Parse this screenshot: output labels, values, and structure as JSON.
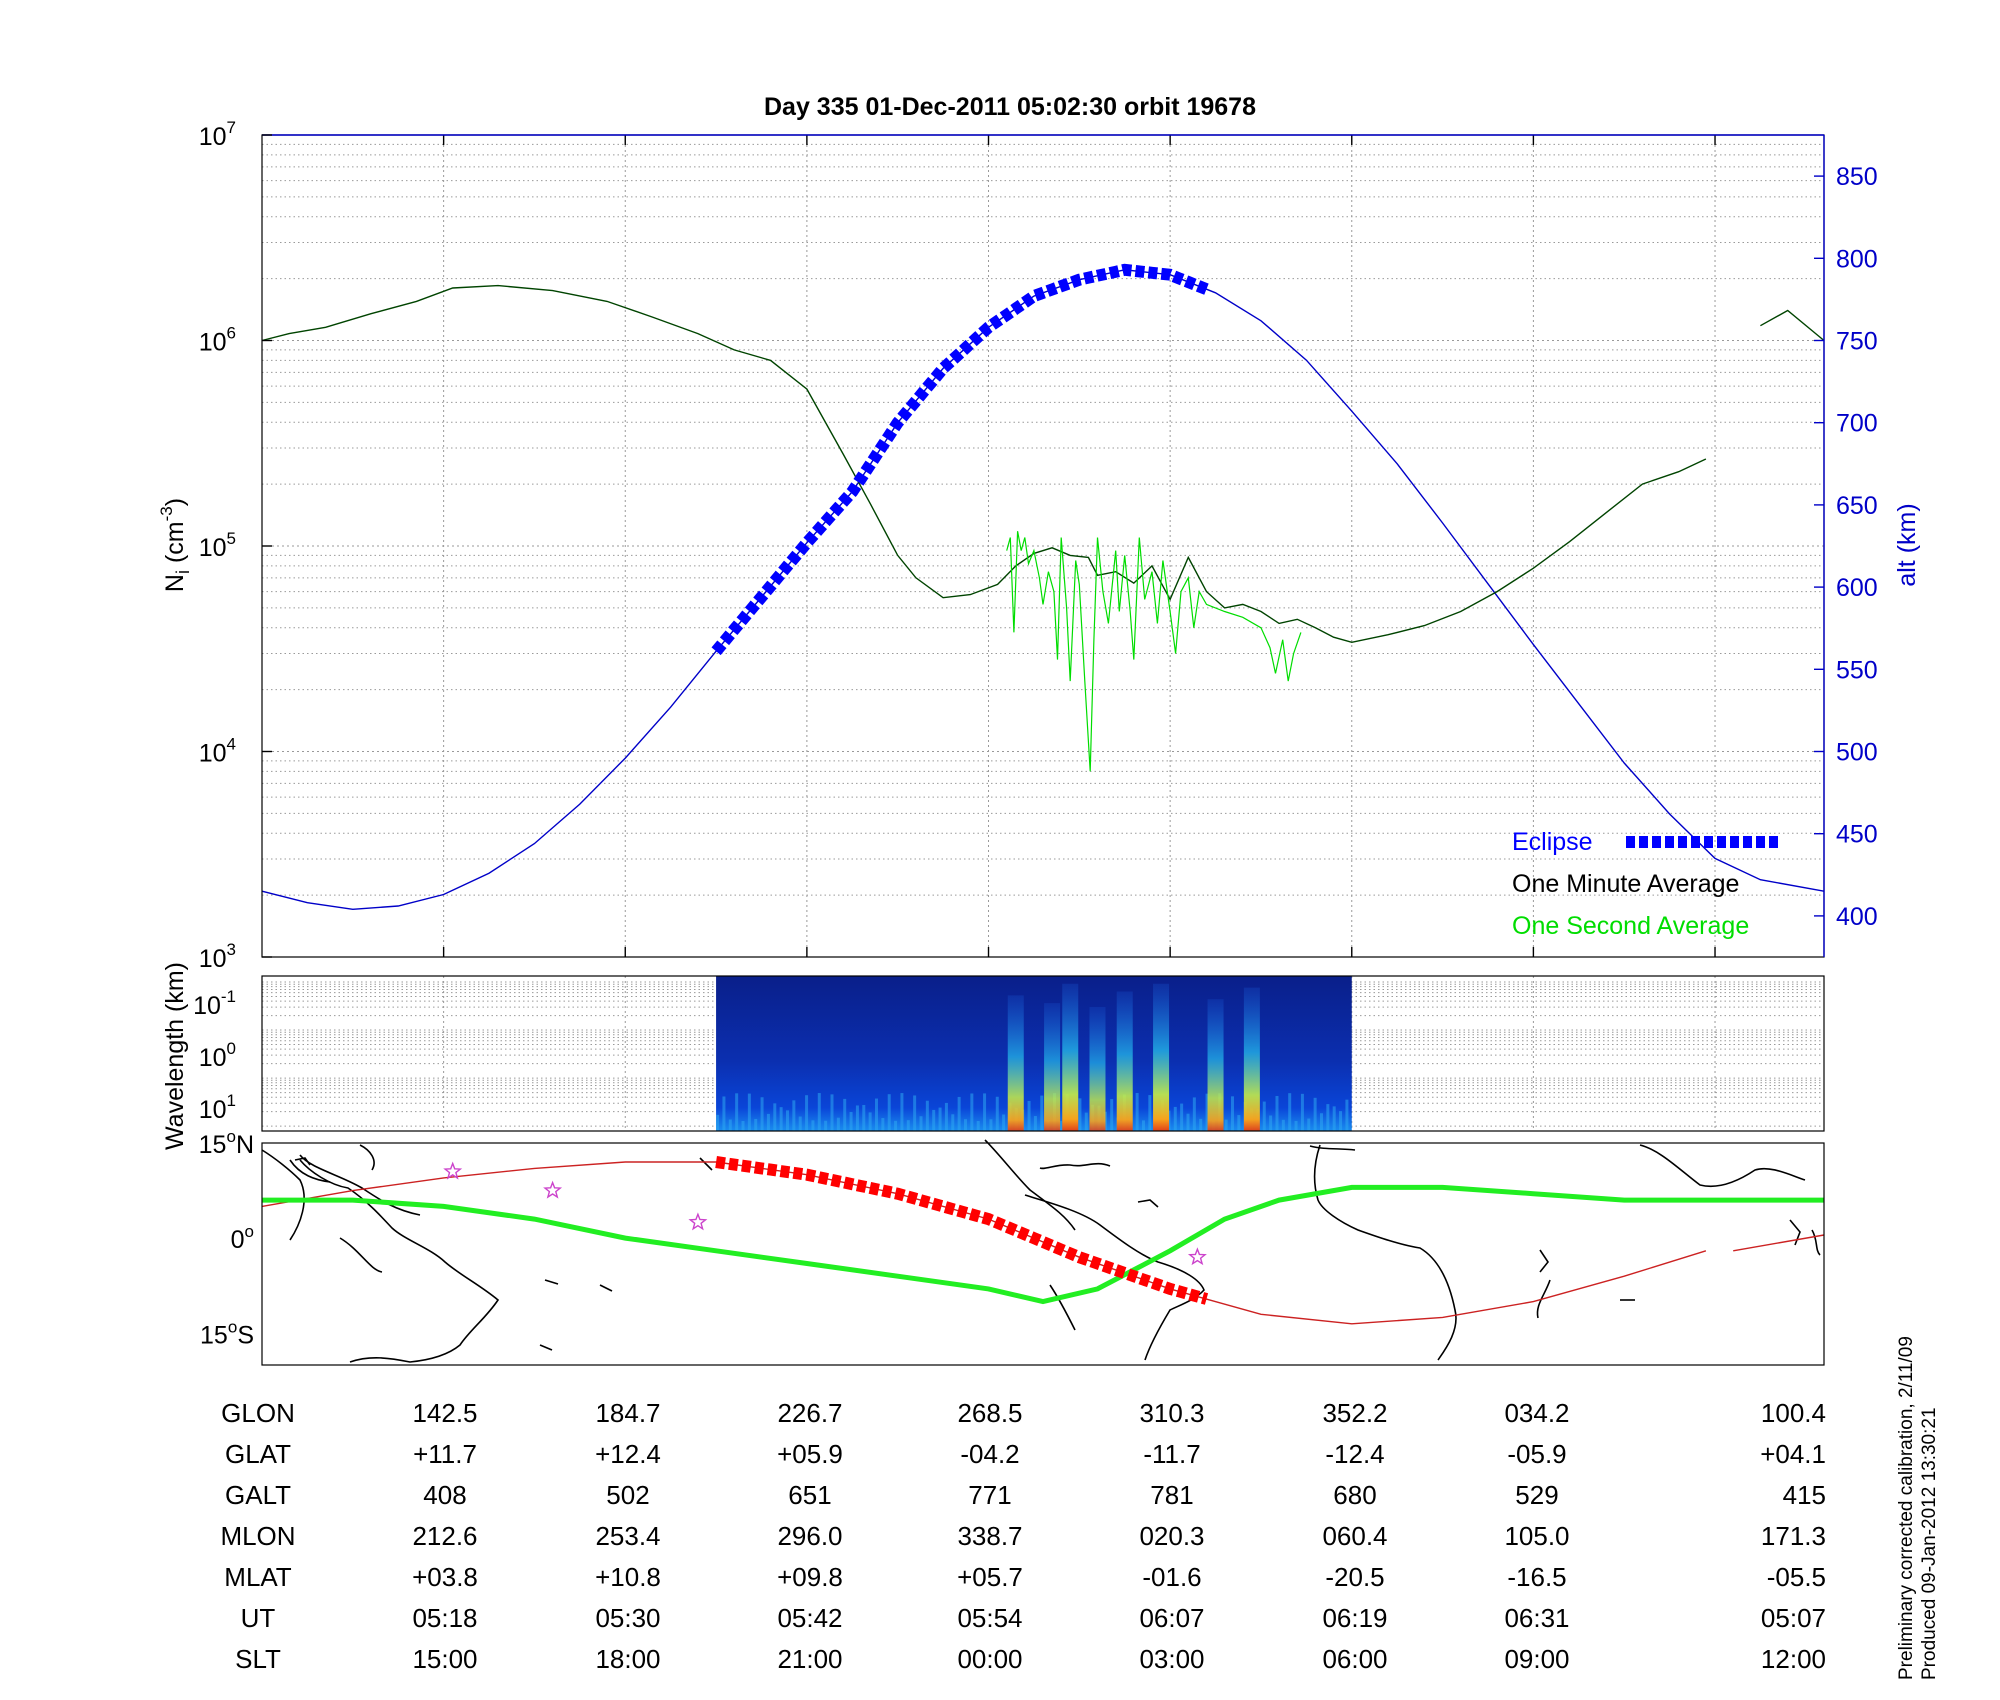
{
  "figure": {
    "title": "Day 335  01-Dec-2011 05:02:30   orbit 19678",
    "side_note_1": "Preliminary corrected calibration, 2/11/09",
    "side_note_2": "Produced 09-Jan-2012 13:30:21"
  },
  "colors": {
    "altitude": "#0000c8",
    "eclipse": "#0000ff",
    "one_minute": "#004400",
    "one_second": "#00dd00",
    "track": "#cc2222",
    "ground_track": "#22ee22",
    "stars": "#cc44cc"
  },
  "chart_data": [
    {
      "type": "line",
      "panel": "density",
      "yscale": "log",
      "ylim": [
        1000,
        10000000
      ],
      "y_ticks": [
        {
          "base": "10",
          "exp": "3"
        },
        {
          "base": "10",
          "exp": "4"
        },
        {
          "base": "10",
          "exp": "5"
        },
        {
          "base": "10",
          "exp": "6"
        },
        {
          "base": "10",
          "exp": "7"
        }
      ],
      "ylabel": "N",
      "ylabel_sub": "i",
      "ylabel_unit": " (cm",
      "ylabel_exp": "-3",
      "ylabel_end": ")",
      "y2label": "alt (km)",
      "y2lim": [
        375,
        875
      ],
      "y2_ticks": [
        400,
        450,
        500,
        550,
        600,
        650,
        700,
        750,
        800,
        850
      ],
      "xlim": [
        0,
        8.6
      ],
      "grid": true,
      "legend_position": "bottom-right",
      "legend": [
        "Eclipse",
        "One Minute Average",
        "One Second Average"
      ],
      "altitude": {
        "x": [
          0,
          0.25,
          0.5,
          0.75,
          1.0,
          1.25,
          1.5,
          1.75,
          2.0,
          2.25,
          2.5,
          2.75,
          3.0,
          3.25,
          3.5,
          3.75,
          4.0,
          4.25,
          4.5,
          4.75,
          5.0,
          5.25,
          5.5,
          5.75,
          6.0,
          6.25,
          6.5,
          6.75,
          7.0,
          7.25,
          7.5,
          7.75,
          8.0,
          8.25,
          8.6
        ],
        "y": [
          415,
          408,
          404,
          406,
          413,
          426,
          444,
          468,
          496,
          527,
          561,
          594,
          627,
          658,
          700,
          733,
          758,
          777,
          787,
          793,
          790,
          779,
          762,
          738,
          707,
          675,
          639,
          602,
          565,
          529,
          493,
          462,
          435,
          422,
          415
        ]
      },
      "eclipse": {
        "x_start": 2.5,
        "x_end": 5.2
      },
      "one_minute": {
        "x": [
          0,
          0.15,
          0.35,
          0.6,
          0.85,
          1.05,
          1.3,
          1.6,
          1.9,
          2.15,
          2.4,
          2.6,
          2.8,
          3.0,
          3.2,
          3.35,
          3.5,
          3.6,
          3.75,
          3.9,
          4.05,
          4.15,
          4.25,
          4.35,
          4.45,
          4.55,
          4.6,
          4.7,
          4.8,
          4.9,
          5.0,
          5.1,
          5.2,
          5.3,
          5.4,
          5.5,
          5.6,
          5.7,
          5.8,
          5.9,
          6.0,
          6.2,
          6.4,
          6.6,
          6.8,
          7.0,
          7.2,
          7.4,
          7.6,
          7.8,
          7.95
        ],
        "y": [
          1000000,
          1080000,
          1160000,
          1350000,
          1550000,
          1800000,
          1850000,
          1750000,
          1550000,
          1300000,
          1080000,
          900000,
          800000,
          580000,
          280000,
          160000,
          90000,
          70000,
          56000,
          58000,
          65000,
          80000,
          92000,
          98000,
          90000,
          88000,
          72000,
          75000,
          66000,
          80000,
          55000,
          88000,
          60000,
          50000,
          52000,
          48000,
          42000,
          44000,
          40000,
          36000,
          34000,
          37000,
          41000,
          48000,
          60000,
          78000,
          105000,
          145000,
          200000,
          230000,
          265000
        ]
      },
      "one_minute_tail": {
        "x": [
          8.25,
          8.4,
          8.6
        ],
        "y": [
          1180000,
          1400000,
          1000000
        ]
      },
      "one_second": {
        "x": [
          4.1,
          4.12,
          4.14,
          4.16,
          4.18,
          4.2,
          4.22,
          4.25,
          4.28,
          4.3,
          4.33,
          4.36,
          4.38,
          4.4,
          4.43,
          4.45,
          4.48,
          4.5,
          4.53,
          4.56,
          4.58,
          4.6,
          4.63,
          4.66,
          4.7,
          4.72,
          4.75,
          4.78,
          4.8,
          4.83,
          4.86,
          4.9,
          4.93,
          4.96,
          5.0,
          5.03,
          5.06,
          5.1,
          5.13,
          5.16,
          5.2,
          5.3,
          5.4,
          5.5,
          5.55,
          5.58,
          5.62,
          5.65,
          5.68,
          5.72
        ],
        "y": [
          95000,
          110000,
          38000,
          118000,
          95000,
          110000,
          82000,
          95000,
          70000,
          52000,
          75000,
          60000,
          28000,
          110000,
          50000,
          22000,
          85000,
          65000,
          22000,
          8000,
          35000,
          110000,
          60000,
          42000,
          95000,
          48000,
          90000,
          48000,
          28000,
          110000,
          55000,
          75000,
          42000,
          85000,
          48000,
          30000,
          60000,
          70000,
          40000,
          60000,
          52000,
          48000,
          45000,
          40000,
          32000,
          24000,
          35000,
          22000,
          30000,
          38000
        ]
      }
    },
    {
      "type": "heatmap",
      "panel": "spectrogram",
      "ylabel": "Wavelength (km)",
      "y_ticks": [
        {
          "base": "10",
          "exp": "-1"
        },
        {
          "base": "10",
          "exp": "0"
        },
        {
          "base": "10",
          "exp": "1"
        }
      ],
      "x_start": 2.5,
      "x_end": 6.0,
      "bursts": [
        {
          "x": 4.15,
          "strength": 0.85
        },
        {
          "x": 4.35,
          "strength": 0.75
        },
        {
          "x": 4.45,
          "strength": 1.0
        },
        {
          "x": 4.6,
          "strength": 0.7
        },
        {
          "x": 4.75,
          "strength": 0.9
        },
        {
          "x": 4.95,
          "strength": 1.0
        },
        {
          "x": 5.25,
          "strength": 0.8
        },
        {
          "x": 5.45,
          "strength": 0.95
        }
      ]
    },
    {
      "type": "line",
      "panel": "map",
      "y_ticks": [
        {
          "value": "15",
          "deg": "o",
          "hemi": "N"
        },
        {
          "value": "0",
          "deg": "o",
          "hemi": ""
        },
        {
          "value": "15",
          "deg": "o",
          "hemi": "S"
        }
      ],
      "ylim": [
        -20,
        15
      ],
      "orbit_track": {
        "x": [
          0,
          0.5,
          1.0,
          1.5,
          2.0,
          2.5,
          3.0,
          3.5,
          4.0,
          4.5,
          5.0,
          5.5,
          6.0,
          6.5,
          7.0,
          7.5,
          7.95
        ],
        "y": [
          5,
          7.5,
          9.5,
          11,
          12,
          12,
          10,
          7,
          3,
          -3,
          -8,
          -12,
          -13.5,
          -12.5,
          -10,
          -6,
          -2
        ]
      },
      "orbit_tail": {
        "x": [
          8.1,
          8.6
        ],
        "y": [
          -2,
          0.5
        ]
      },
      "red_track": {
        "x_start": 2.5,
        "x_end": 5.2
      },
      "ground_track": {
        "x": [
          0,
          0.5,
          1.0,
          1.5,
          2.0,
          2.5,
          3.0,
          3.5,
          4.0,
          4.3,
          4.6,
          4.8,
          5.0,
          5.3,
          5.6,
          6.0,
          6.5,
          7.0,
          7.5,
          8.0,
          8.6
        ],
        "y": [
          6,
          6,
          5,
          3,
          0,
          -2,
          -4,
          -6,
          -8,
          -10,
          -8,
          -5,
          -2,
          3,
          6,
          8,
          8,
          7,
          6,
          6,
          6
        ]
      },
      "stars": [
        {
          "x": 1.05,
          "y": 10.5
        },
        {
          "x": 1.6,
          "y": 7.5
        },
        {
          "x": 2.4,
          "y": 2.5
        },
        {
          "x": 5.15,
          "y": -3
        }
      ]
    }
  ],
  "table": {
    "rows": [
      {
        "label": "GLON",
        "values": [
          "142.5",
          "184.7",
          "226.7",
          "268.5",
          "310.3",
          "352.2",
          "034.2",
          "100.4"
        ]
      },
      {
        "label": "GLAT",
        "values": [
          "+11.7",
          "+12.4",
          "+05.9",
          "-04.2",
          "-11.7",
          "-12.4",
          "-05.9",
          "+04.1"
        ]
      },
      {
        "label": "GALT",
        "values": [
          "408",
          "502",
          "651",
          "771",
          "781",
          "680",
          "529",
          "415"
        ]
      },
      {
        "label": "MLON",
        "values": [
          "212.6",
          "253.4",
          "296.0",
          "338.7",
          "020.3",
          "060.4",
          "105.0",
          "171.3"
        ]
      },
      {
        "label": "MLAT",
        "values": [
          "+03.8",
          "+10.8",
          "+09.8",
          "+05.7",
          "-01.6",
          "-20.5",
          "-16.5",
          "-05.5"
        ]
      },
      {
        "label": "UT",
        "values": [
          "05:18",
          "05:30",
          "05:42",
          "05:54",
          "06:07",
          "06:19",
          "06:31",
          "05:07"
        ]
      },
      {
        "label": "SLT",
        "values": [
          "15:00",
          "18:00",
          "21:00",
          "00:00",
          "03:00",
          "06:00",
          "09:00",
          "12:00"
        ]
      }
    ]
  }
}
